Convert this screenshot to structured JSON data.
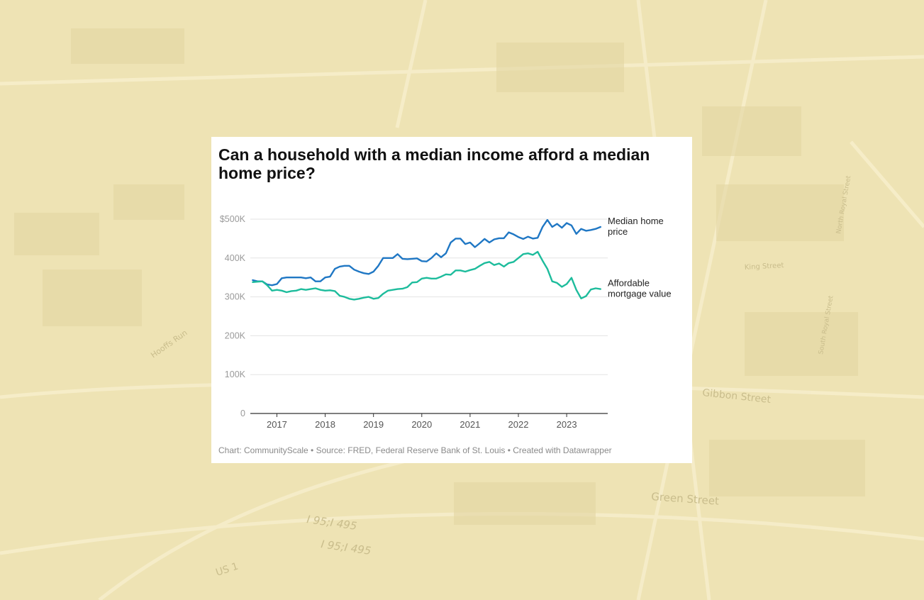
{
  "background": {
    "street_labels": [
      "Green Street",
      "Gibbon Street",
      "I 95;I 495",
      "I 95;I 495",
      "US 1",
      "King Street",
      "Hooffs Run",
      "South Royal Street",
      "North Royal Street"
    ]
  },
  "footer": {
    "source": "Chart: CommunityScale • Source: FRED, Federal Reserve Bank of St. Louis • Created with Datawrapper"
  },
  "chart_data": {
    "type": "line",
    "title": "Can a household with a median income afford a median home price?",
    "xlabel": "",
    "ylabel": "",
    "xlim": [
      2016.45,
      2023.85
    ],
    "ylim": [
      0,
      500000
    ],
    "yticks": [
      0,
      100000,
      200000,
      300000,
      400000,
      500000
    ],
    "ytick_labels": [
      "0",
      "100K",
      "200K",
      "300K",
      "400K",
      "$500K"
    ],
    "xticks": [
      2017,
      2018,
      2019,
      2020,
      2021,
      2022,
      2023
    ],
    "xtick_labels": [
      "2017",
      "2018",
      "2019",
      "2020",
      "2021",
      "2022",
      "2023"
    ],
    "grid": true,
    "series": [
      {
        "name": "Median home price",
        "label_lines": [
          "Median home",
          "price"
        ],
        "color": "#1f77c4",
        "x": [
          2016.5,
          2016.6,
          2016.7,
          2016.8,
          2016.9,
          2017.0,
          2017.1,
          2017.2,
          2017.3,
          2017.4,
          2017.5,
          2017.6,
          2017.7,
          2017.8,
          2017.9,
          2018.0,
          2018.1,
          2018.2,
          2018.3,
          2018.4,
          2018.5,
          2018.6,
          2018.7,
          2018.8,
          2018.9,
          2019.0,
          2019.1,
          2019.2,
          2019.3,
          2019.4,
          2019.5,
          2019.6,
          2019.7,
          2019.8,
          2019.9,
          2020.0,
          2020.1,
          2020.2,
          2020.3,
          2020.4,
          2020.5,
          2020.6,
          2020.7,
          2020.8,
          2020.9,
          2021.0,
          2021.1,
          2021.2,
          2021.3,
          2021.4,
          2021.5,
          2021.6,
          2021.7,
          2021.8,
          2021.9,
          2022.0,
          2022.1,
          2022.2,
          2022.3,
          2022.4,
          2022.5,
          2022.6,
          2022.7,
          2022.8,
          2022.9,
          2023.0,
          2023.1,
          2023.2,
          2023.3,
          2023.4,
          2023.5,
          2023.6,
          2023.7
        ],
        "values": [
          343000,
          340000,
          340000,
          332000,
          330000,
          333000,
          348000,
          350000,
          350000,
          350000,
          350000,
          348000,
          350000,
          340000,
          340000,
          350000,
          352000,
          372000,
          378000,
          380000,
          380000,
          370000,
          365000,
          361000,
          359000,
          365000,
          380000,
          400000,
          400000,
          400000,
          410000,
          398000,
          397000,
          398000,
          399000,
          392000,
          391000,
          400000,
          412000,
          402000,
          412000,
          440000,
          450000,
          450000,
          436000,
          440000,
          428000,
          438000,
          449000,
          440000,
          448000,
          451000,
          451000,
          466000,
          461000,
          454000,
          449000,
          455000,
          450000,
          452000,
          480000,
          498000,
          480000,
          488000,
          478000,
          490000,
          484000,
          462000,
          475000,
          470000,
          472000,
          475000,
          480000
        ]
      },
      {
        "name": "Affordable mortgage value",
        "label_lines": [
          "Affordable",
          "mortgage value"
        ],
        "color": "#1dbc9c",
        "x": [
          2016.5,
          2016.6,
          2016.7,
          2016.8,
          2016.9,
          2017.0,
          2017.1,
          2017.2,
          2017.3,
          2017.4,
          2017.5,
          2017.6,
          2017.7,
          2017.8,
          2017.9,
          2018.0,
          2018.1,
          2018.2,
          2018.3,
          2018.4,
          2018.5,
          2018.6,
          2018.7,
          2018.8,
          2018.9,
          2019.0,
          2019.1,
          2019.2,
          2019.3,
          2019.4,
          2019.5,
          2019.6,
          2019.7,
          2019.8,
          2019.9,
          2020.0,
          2020.1,
          2020.2,
          2020.3,
          2020.4,
          2020.5,
          2020.6,
          2020.7,
          2020.8,
          2020.9,
          2021.0,
          2021.1,
          2021.2,
          2021.3,
          2021.4,
          2021.5,
          2021.6,
          2021.7,
          2021.8,
          2021.9,
          2022.0,
          2022.1,
          2022.2,
          2022.3,
          2022.4,
          2022.5,
          2022.6,
          2022.7,
          2022.8,
          2022.9,
          2023.0,
          2023.1,
          2023.2,
          2023.3,
          2023.4,
          2023.5,
          2023.6,
          2023.7
        ],
        "values": [
          338000,
          339000,
          340000,
          330000,
          316000,
          318000,
          316000,
          312000,
          315000,
          316000,
          320000,
          318000,
          320000,
          322000,
          318000,
          316000,
          317000,
          315000,
          303000,
          300000,
          295000,
          293000,
          295000,
          298000,
          300000,
          295000,
          297000,
          308000,
          316000,
          318000,
          320000,
          321000,
          325000,
          337000,
          338000,
          347000,
          349000,
          347000,
          347000,
          352000,
          358000,
          357000,
          368000,
          368000,
          365000,
          369000,
          372000,
          380000,
          387000,
          390000,
          382000,
          386000,
          378000,
          387000,
          390000,
          400000,
          410000,
          412000,
          408000,
          416000,
          393000,
          372000,
          340000,
          336000,
          326000,
          333000,
          349000,
          318000,
          296000,
          302000,
          319000,
          322000,
          320000
        ]
      }
    ]
  }
}
